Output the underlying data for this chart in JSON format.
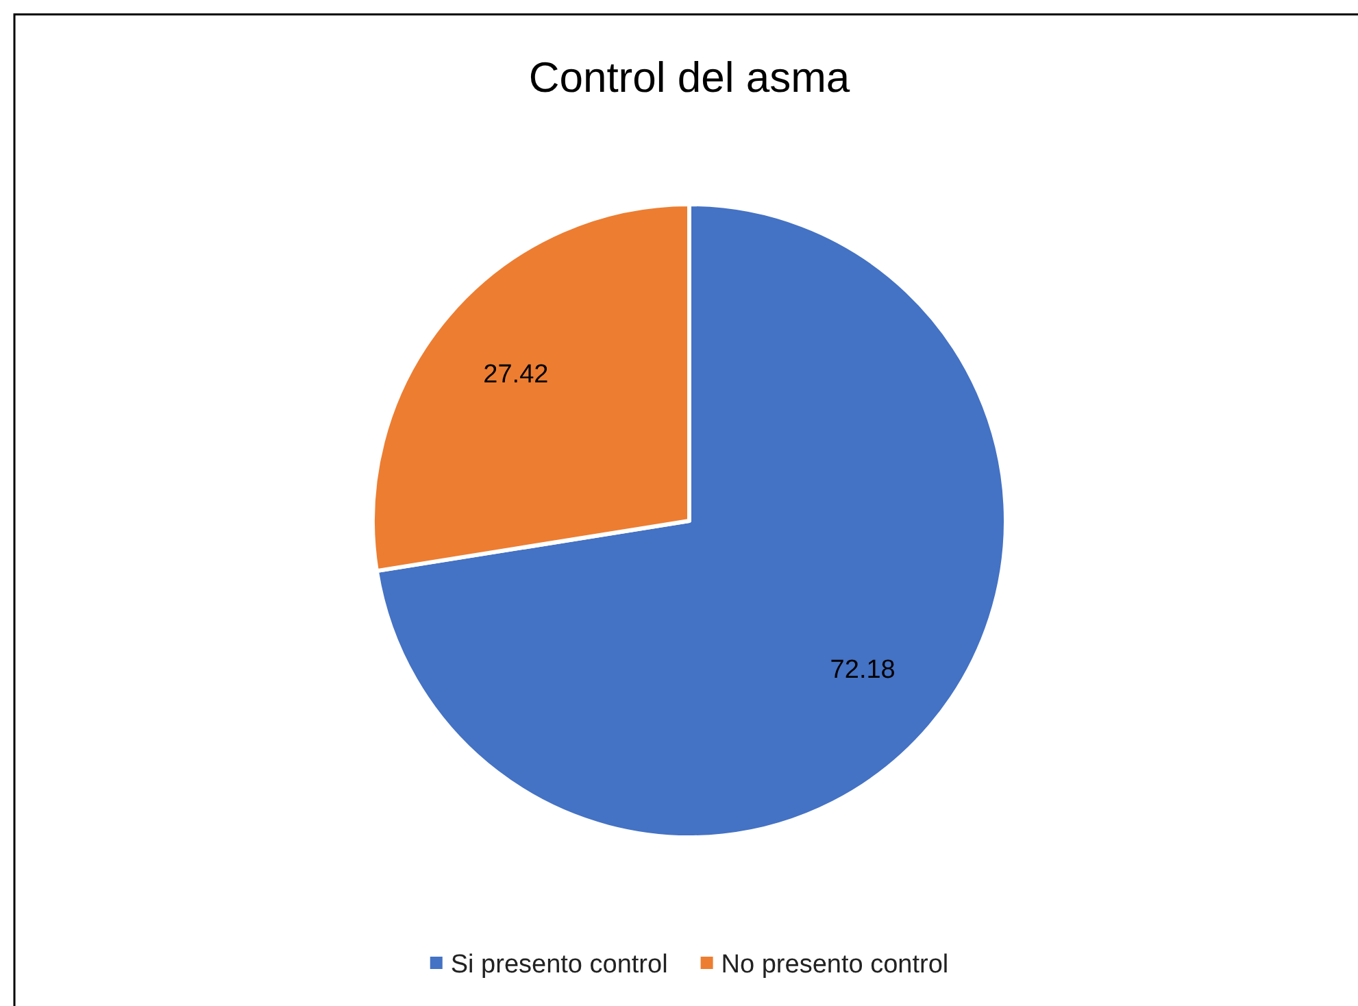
{
  "chart_data": {
    "type": "pie",
    "title": "Control del asma",
    "categories": [
      "Si presento control",
      "No presento control"
    ],
    "values": [
      72.18,
      27.42
    ],
    "colors": [
      "#4472c4",
      "#ed7d31"
    ],
    "data_labels": true,
    "legend": "bottom"
  }
}
